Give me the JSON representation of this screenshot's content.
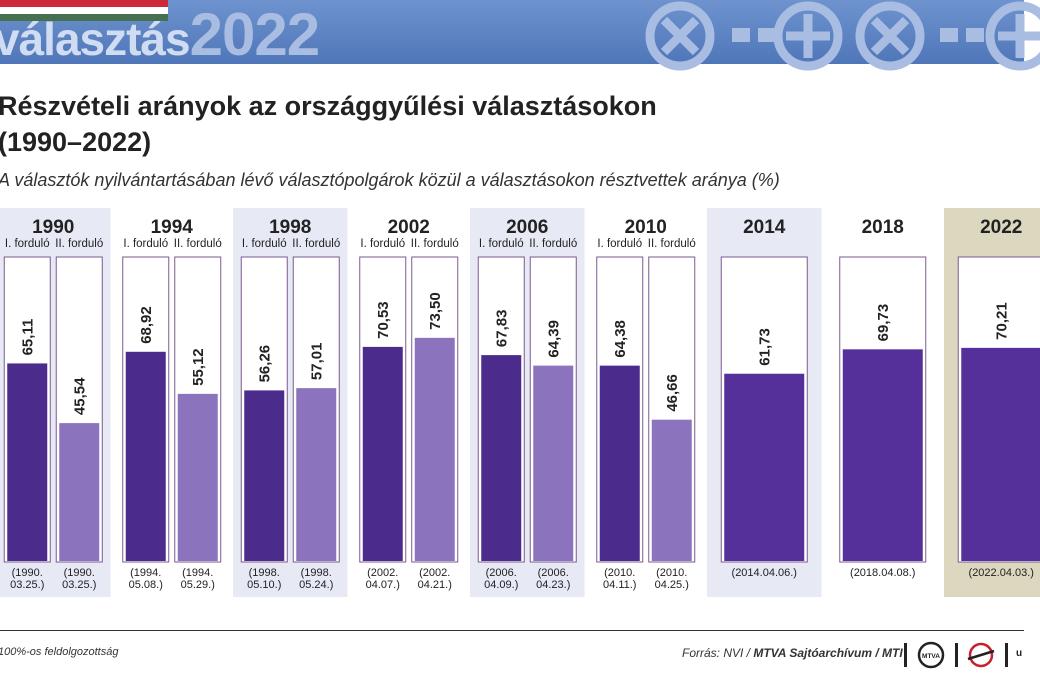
{
  "banner": {
    "title_part1": "választás",
    "title_part2": "2022",
    "flag_colors": [
      "#ce2939",
      "#ffffff",
      "#477050"
    ]
  },
  "title_line1": "Részvételi arányok az országgyűlési választásokon",
  "title_line2": "(1990–2022)",
  "subtitle": "A választók nyilvántartásában lévő választópolgárok közül a választásokon résztvettek aránya (%)",
  "chart_data": {
    "type": "bar",
    "title": "Részvételi arányok az országgyűlési választásokon (1990–2022)",
    "ylabel": "%",
    "ylim": [
      0,
      100
    ],
    "round_labels": [
      "I. forduló",
      "II. forduló"
    ],
    "groups": [
      {
        "year": "1990",
        "shaded": true,
        "bars": [
          {
            "round": "I. forduló",
            "value": 65.11,
            "label": "65,11",
            "date": [
              "(1990.",
              "03.25.)"
            ]
          },
          {
            "round": "II. forduló",
            "value": 45.54,
            "label": "45,54",
            "date": [
              "(1990.",
              "03.25.)"
            ]
          }
        ]
      },
      {
        "year": "1994",
        "shaded": false,
        "bars": [
          {
            "round": "I. forduló",
            "value": 68.92,
            "label": "68,92",
            "date": [
              "(1994.",
              "05.08.)"
            ]
          },
          {
            "round": "II. forduló",
            "value": 55.12,
            "label": "55,12",
            "date": [
              "(1994.",
              "05.29.)"
            ]
          }
        ]
      },
      {
        "year": "1998",
        "shaded": true,
        "bars": [
          {
            "round": "I. forduló",
            "value": 56.26,
            "label": "56,26",
            "date": [
              "(1998.",
              "05.10.)"
            ]
          },
          {
            "round": "II. forduló",
            "value": 57.01,
            "label": "57,01",
            "date": [
              "(1998.",
              "05.24.)"
            ]
          }
        ]
      },
      {
        "year": "2002",
        "shaded": false,
        "bars": [
          {
            "round": "I. forduló",
            "value": 70.53,
            "label": "70,53",
            "date": [
              "(2002.",
              "04.07.)"
            ]
          },
          {
            "round": "II. forduló",
            "value": 73.5,
            "label": "73,50",
            "date": [
              "(2002.",
              "04.21.)"
            ]
          }
        ]
      },
      {
        "year": "2006",
        "shaded": true,
        "bars": [
          {
            "round": "I. forduló",
            "value": 67.83,
            "label": "67,83",
            "date": [
              "(2006.",
              "04.09.)"
            ]
          },
          {
            "round": "II. forduló",
            "value": 64.39,
            "label": "64,39",
            "date": [
              "(2006.",
              "04.23.)"
            ]
          }
        ]
      },
      {
        "year": "2010",
        "shaded": false,
        "bars": [
          {
            "round": "I. forduló",
            "value": 64.38,
            "label": "64,38",
            "date": [
              "(2010.",
              "04.11.)"
            ]
          },
          {
            "round": "II. forduló",
            "value": 46.66,
            "label": "46,66",
            "date": [
              "(2010.",
              "04.25.)"
            ]
          }
        ]
      },
      {
        "year": "2014",
        "shaded": true,
        "bars": [
          {
            "round": "",
            "value": 61.73,
            "label": "61,73",
            "date": [
              "(2014.04.06.)"
            ]
          }
        ]
      },
      {
        "year": "2018",
        "shaded": false,
        "bars": [
          {
            "round": "",
            "value": 69.73,
            "label": "69,73",
            "date": [
              "(2018.04.08.)"
            ]
          }
        ]
      },
      {
        "year": "2022",
        "shaded": "highlight",
        "bars": [
          {
            "round": "",
            "value": 70.21,
            "label": "70,21",
            "date": [
              "(2022.04.03.)"
            ]
          }
        ]
      }
    ]
  },
  "colors": {
    "round1": "#4b2c8c",
    "round2": "#8c73bd",
    "single": "#55309b",
    "shade": "#e7e9f5",
    "highlight": "#dcd7bf",
    "frame": "#7a5a8e"
  },
  "footnote": "100%-os feldolgozottság",
  "source": {
    "prefix": "Forrás: NVI / ",
    "bold": "MTVA Sajtóarchívum / MTI"
  },
  "logos": {
    "mtva": "MTVA",
    "last": "u"
  }
}
